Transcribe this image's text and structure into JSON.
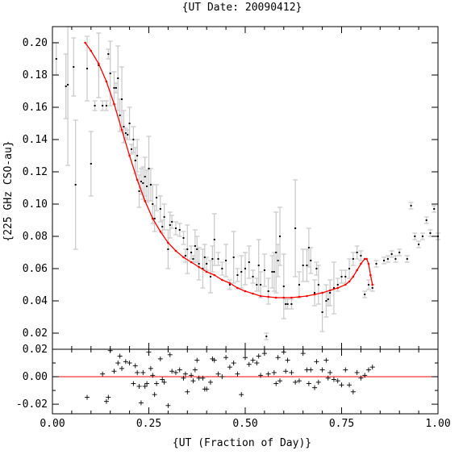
{
  "chart_data": [
    {
      "type": "scatter",
      "title": "{UT Date: 20090412}",
      "xlabel": "",
      "ylabel": "{225 GHz CSO-au}",
      "xlim": [
        0.0,
        1.0
      ],
      "ylim": [
        0.01,
        0.21
      ],
      "xticks": [
        0.0,
        0.25,
        0.5,
        0.75,
        1.0
      ],
      "xticklabels": [],
      "yticks": [
        0.02,
        0.04,
        0.06,
        0.08,
        0.1,
        0.12,
        0.14,
        0.16,
        0.18,
        0.2
      ],
      "yticklabels": [
        "0.02",
        "0.04",
        "0.06",
        "0.08",
        "0.10",
        "0.12",
        "0.14",
        "0.16",
        "0.18",
        "0.20"
      ],
      "colors": {
        "points": "#000000",
        "errorbars": "#c8c8c8",
        "fit": "#ff0000"
      },
      "series": [
        {
          "kind": "measurements",
          "x": [
            0.01,
            0.035,
            0.04,
            0.055,
            0.06,
            0.09,
            0.1,
            0.11,
            0.12,
            0.13,
            0.14,
            0.145,
            0.15,
            0.16,
            0.165,
            0.17,
            0.175,
            0.18,
            0.185,
            0.19,
            0.195,
            0.2,
            0.205,
            0.21,
            0.215,
            0.22,
            0.225,
            0.23,
            0.235,
            0.24,
            0.245,
            0.25,
            0.255,
            0.26,
            0.265,
            0.27,
            0.28,
            0.285,
            0.29,
            0.3,
            0.305,
            0.31,
            0.32,
            0.33,
            0.34,
            0.345,
            0.35,
            0.36,
            0.365,
            0.37,
            0.375,
            0.38,
            0.39,
            0.395,
            0.4,
            0.41,
            0.415,
            0.42,
            0.43,
            0.44,
            0.45,
            0.46,
            0.47,
            0.48,
            0.49,
            0.5,
            0.51,
            0.52,
            0.53,
            0.535,
            0.54,
            0.55,
            0.555,
            0.56,
            0.57,
            0.575,
            0.58,
            0.585,
            0.59,
            0.6,
            0.605,
            0.61,
            0.62,
            0.63,
            0.64,
            0.65,
            0.66,
            0.665,
            0.67,
            0.68,
            0.685,
            0.69,
            0.7,
            0.71,
            0.715,
            0.72,
            0.73,
            0.74,
            0.75,
            0.76,
            0.77,
            0.78,
            0.79,
            0.8,
            0.81,
            0.82,
            0.83,
            0.84,
            0.86,
            0.87,
            0.88,
            0.89,
            0.9,
            0.92,
            0.93,
            0.94,
            0.95,
            0.96,
            0.97,
            0.98,
            0.99,
            1.0
          ],
          "y": [
            0.19,
            0.173,
            0.174,
            0.185,
            0.112,
            0.184,
            0.125,
            0.161,
            0.186,
            0.161,
            0.161,
            0.193,
            0.181,
            0.172,
            0.172,
            0.178,
            0.155,
            0.165,
            0.148,
            0.144,
            0.143,
            0.15,
            0.134,
            0.14,
            0.127,
            0.13,
            0.108,
            0.114,
            0.113,
            0.117,
            0.111,
            0.122,
            0.112,
            0.1,
            0.091,
            0.104,
            0.097,
            0.086,
            0.092,
            0.072,
            0.087,
            0.089,
            0.085,
            0.084,
            0.079,
            0.068,
            0.072,
            0.07,
            0.066,
            0.074,
            0.072,
            0.063,
            0.06,
            0.067,
            0.063,
            0.055,
            0.066,
            0.078,
            0.066,
            0.06,
            0.065,
            0.05,
            0.067,
            0.056,
            0.058,
            0.06,
            0.064,
            0.055,
            0.05,
            0.062,
            0.05,
            0.059,
            0.018,
            0.046,
            0.058,
            0.058,
            0.07,
            0.065,
            0.08,
            0.049,
            0.038,
            0.038,
            0.038,
            0.085,
            0.05,
            0.062,
            0.062,
            0.073,
            0.065,
            0.045,
            0.06,
            0.05,
            0.033,
            0.04,
            0.041,
            0.045,
            0.048,
            0.05,
            0.055,
            0.055,
            0.06,
            0.066,
            0.07,
            0.068,
            0.044,
            0.05,
            0.048,
            0.063,
            0.065,
            0.066,
            0.069,
            0.066,
            0.07,
            0.066,
            0.099,
            0.08,
            0.075,
            0.08,
            0.09,
            0.082,
            0.097,
            0.08
          ],
          "yerr": [
            0.01,
            0.02,
            0.05,
            0.018,
            0.04,
            0.02,
            0.02,
            0.003,
            0.02,
            0.003,
            0.003,
            0.003,
            0.02,
            0.01,
            0.003,
            0.02,
            0.01,
            0.02,
            0.01,
            0.003,
            0.003,
            0.01,
            0.003,
            0.008,
            0.008,
            0.01,
            0.01,
            0.008,
            0.01,
            0.012,
            0.01,
            0.02,
            0.01,
            0.012,
            0.008,
            0.008,
            0.008,
            0.004,
            0.008,
            0.012,
            0.008,
            0.004,
            0.004,
            0.004,
            0.004,
            0.004,
            0.015,
            0.004,
            0.002,
            0.01,
            0.008,
            0.01,
            0.012,
            0.008,
            0.004,
            0.01,
            0.008,
            0.016,
            0.004,
            0.004,
            0.01,
            0.003,
            0.016,
            0.004,
            0.01,
            0.01,
            0.01,
            0.004,
            0.004,
            0.016,
            0.008,
            0.01,
            0.002,
            0.008,
            0.01,
            0.012,
            0.025,
            0.01,
            0.018,
            0.02,
            0.003,
            0.003,
            0.003,
            0.03,
            0.008,
            0.01,
            0.01,
            0.012,
            0.008,
            0.008,
            0.004,
            0.012,
            0.012,
            0.01,
            0.004,
            0.008,
            0.016,
            0.004,
            0.004,
            0.004,
            0.006,
            0.004,
            0.004,
            0.003,
            0.002,
            0.003,
            0.002,
            0.002,
            0.002,
            0.002,
            0.002,
            0.002,
            0.002,
            0.002,
            0.002,
            0.002,
            0.002,
            0.002,
            0.002,
            0.002,
            0.002,
            0.002
          ]
        },
        {
          "kind": "fit",
          "x": [
            0.085,
            0.1,
            0.12,
            0.14,
            0.16,
            0.18,
            0.2,
            0.22,
            0.24,
            0.26,
            0.28,
            0.3,
            0.32,
            0.34,
            0.36,
            0.38,
            0.4,
            0.42,
            0.44,
            0.46,
            0.48,
            0.5,
            0.52,
            0.54,
            0.56,
            0.58,
            0.6,
            0.62,
            0.64,
            0.66,
            0.68,
            0.7,
            0.72,
            0.74,
            0.76,
            0.77,
            0.78,
            0.79,
            0.8,
            0.81,
            0.815,
            0.82,
            0.825,
            0.83
          ],
          "y": [
            0.2,
            0.195,
            0.187,
            0.176,
            0.162,
            0.146,
            0.13,
            0.115,
            0.102,
            0.091,
            0.083,
            0.076,
            0.071,
            0.067,
            0.064,
            0.061,
            0.058,
            0.056,
            0.053,
            0.051,
            0.048,
            0.046,
            0.0445,
            0.043,
            0.0425,
            0.042,
            0.042,
            0.042,
            0.0425,
            0.043,
            0.044,
            0.045,
            0.0465,
            0.048,
            0.05,
            0.052,
            0.055,
            0.059,
            0.063,
            0.066,
            0.066,
            0.063,
            0.056,
            0.05
          ]
        }
      ]
    },
    {
      "type": "scatter",
      "title": "",
      "xlabel": "{UT (Fraction of Day)}",
      "ylabel": "",
      "xlim": [
        0.0,
        1.0
      ],
      "ylim": [
        -0.027,
        0.02
      ],
      "xticks": [
        0.0,
        0.25,
        0.5,
        0.75,
        1.0
      ],
      "xticklabels": [
        "0.00",
        "0.25",
        "0.50",
        "0.75",
        "1.00"
      ],
      "yticks": [
        -0.02,
        0.0,
        0.02
      ],
      "yticklabels": [
        "-0.02",
        "0.00",
        "0.02"
      ],
      "colors": {
        "points": "#000000",
        "zero_line": "#ff0000"
      },
      "zero_line": 0.0,
      "series": [
        {
          "kind": "residuals",
          "x": [
            0.09,
            0.13,
            0.14,
            0.145,
            0.15,
            0.16,
            0.17,
            0.175,
            0.18,
            0.19,
            0.2,
            0.21,
            0.215,
            0.22,
            0.225,
            0.23,
            0.235,
            0.24,
            0.245,
            0.25,
            0.255,
            0.26,
            0.265,
            0.27,
            0.28,
            0.285,
            0.29,
            0.3,
            0.305,
            0.31,
            0.32,
            0.33,
            0.34,
            0.345,
            0.35,
            0.36,
            0.365,
            0.37,
            0.375,
            0.38,
            0.39,
            0.395,
            0.4,
            0.41,
            0.415,
            0.42,
            0.43,
            0.44,
            0.45,
            0.46,
            0.47,
            0.48,
            0.49,
            0.5,
            0.51,
            0.52,
            0.53,
            0.535,
            0.54,
            0.55,
            0.56,
            0.57,
            0.575,
            0.58,
            0.585,
            0.59,
            0.6,
            0.605,
            0.61,
            0.62,
            0.63,
            0.64,
            0.65,
            0.66,
            0.665,
            0.67,
            0.68,
            0.685,
            0.69,
            0.7,
            0.71,
            0.715,
            0.72,
            0.73,
            0.74,
            0.75,
            0.76,
            0.77,
            0.78,
            0.79,
            0.8,
            0.81,
            0.82,
            0.83
          ],
          "y": [
            -0.015,
            0.002,
            -0.018,
            -0.015,
            0.019,
            0.004,
            0.01,
            0.015,
            0.006,
            0.011,
            0.01,
            -0.005,
            0.008,
            0.003,
            -0.007,
            -0.019,
            0.003,
            -0.007,
            -0.005,
            0.018,
            0.006,
            0.001,
            -0.013,
            -0.005,
            0.013,
            -0.002,
            -0.004,
            -0.021,
            0.016,
            0.004,
            0.003,
            0.005,
            -0.001,
            0.002,
            -0.011,
            0.001,
            -0.003,
            0.005,
            0.012,
            -0.001,
            -0.001,
            -0.009,
            -0.009,
            -0.004,
            0.013,
            0.012,
            0.002,
            0.0,
            0.014,
            0.007,
            0.01,
            0.002,
            -0.013,
            0.014,
            0.009,
            0.012,
            0.01,
            0.015,
            0.001,
            0.017,
            0.002,
            0.021,
            0.003,
            -0.005,
            0.014,
            -0.003,
            0.018,
            0.004,
            0.012,
            0.003,
            -0.004,
            -0.003,
            0.017,
            0.005,
            -0.005,
            0.005,
            -0.008,
            0.011,
            -0.004,
            0.005,
            0.012,
            -0.001,
            0.003,
            -0.002,
            -0.003,
            -0.006,
            0.005,
            -0.006,
            -0.011,
            0.003,
            -0.001,
            0.001,
            0.005,
            0.007
          ]
        }
      ]
    }
  ]
}
